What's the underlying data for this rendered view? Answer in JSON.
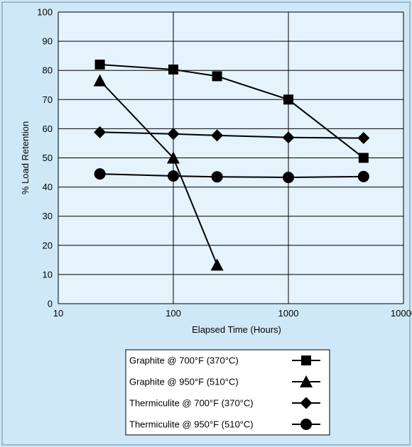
{
  "chart_data": {
    "type": "line",
    "xscale": "log",
    "xlim": [
      10,
      10000
    ],
    "ylim": [
      0,
      100
    ],
    "xticks": [
      10,
      100,
      1000,
      10000
    ],
    "yticks": [
      0,
      10,
      20,
      30,
      40,
      50,
      60,
      70,
      80,
      90,
      100
    ],
    "xtick_labels": [
      "10",
      "100",
      "1000",
      "10000"
    ],
    "ytick_labels": [
      "0",
      "10",
      "20",
      "30",
      "40",
      "50",
      "60",
      "70",
      "80",
      "90",
      "100"
    ],
    "xlabel": "Elapsed Time (Hours)",
    "ylabel": "% Load Retention",
    "grid": true,
    "legend_position": "bottom-center",
    "series": [
      {
        "name": "Graphite @ 700°F (370°C)",
        "marker": "square",
        "x": [
          23,
          100,
          240,
          1000,
          4500
        ],
        "y": [
          82,
          80.3,
          78,
          70,
          50
        ]
      },
      {
        "name": "Graphite @ 950°F (510°C)",
        "marker": "triangle",
        "x": [
          23,
          100,
          240
        ],
        "y": [
          76.5,
          50,
          13.3
        ]
      },
      {
        "name": "Thermiculite @ 700°F (370°C)",
        "marker": "diamond",
        "x": [
          23,
          100,
          240,
          1000,
          4500
        ],
        "y": [
          58.8,
          58.2,
          57.7,
          57,
          56.8
        ]
      },
      {
        "name": "Thermiculite @ 950°F (510°C)",
        "marker": "circle",
        "x": [
          23,
          100,
          240,
          1000,
          4500
        ],
        "y": [
          44.5,
          43.8,
          43.5,
          43.3,
          43.6
        ]
      }
    ],
    "colors": {
      "background": "#cfe8f7",
      "plot_background": "#e4f3fc",
      "series": "#000000"
    }
  }
}
